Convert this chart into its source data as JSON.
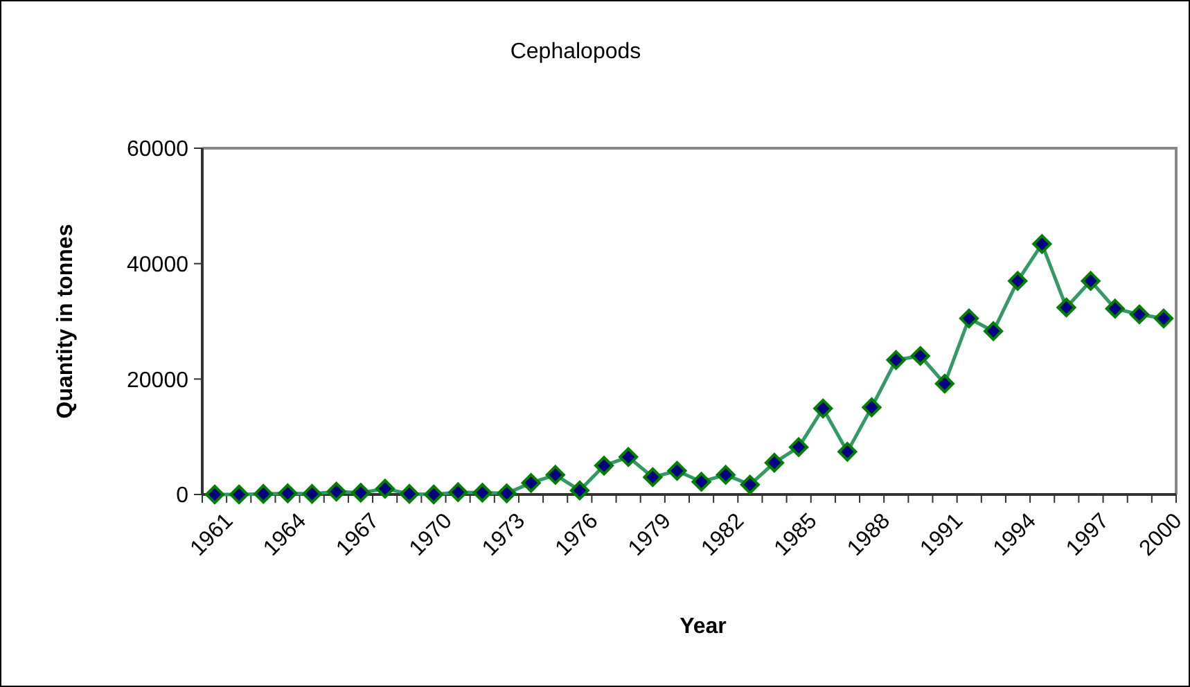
{
  "chart_data": {
    "type": "line",
    "title": "Cephalopods",
    "xlabel": "Year",
    "ylabel": "Quantity in tonnes",
    "categories": [
      "1961",
      null,
      null,
      "1964",
      null,
      null,
      "1967",
      null,
      null,
      "1970",
      null,
      null,
      "1973",
      null,
      null,
      "1976",
      null,
      null,
      "1979",
      null,
      null,
      "1982",
      null,
      null,
      "1985",
      null,
      null,
      "1988",
      null,
      null,
      "1991",
      null,
      null,
      "1994",
      null,
      null,
      "1997",
      null,
      null,
      "2000"
    ],
    "series": [
      {
        "color": "#339966",
        "values": [
          0,
          0,
          100,
          200,
          100,
          500,
          300,
          1000,
          100,
          0,
          400,
          300,
          200,
          2000,
          3400,
          700,
          5000,
          6500,
          3000,
          4100,
          2200,
          3400,
          1700,
          5500,
          8200,
          14900,
          7400,
          15100,
          23300,
          24000,
          19200,
          30500,
          28300,
          37000,
          43400,
          32400,
          37000,
          32200,
          31200,
          30500
        ]
      }
    ],
    "ylim": [
      0,
      60000
    ],
    "yticks": [
      0,
      20000,
      40000,
      60000
    ],
    "marker": "diamond"
  }
}
